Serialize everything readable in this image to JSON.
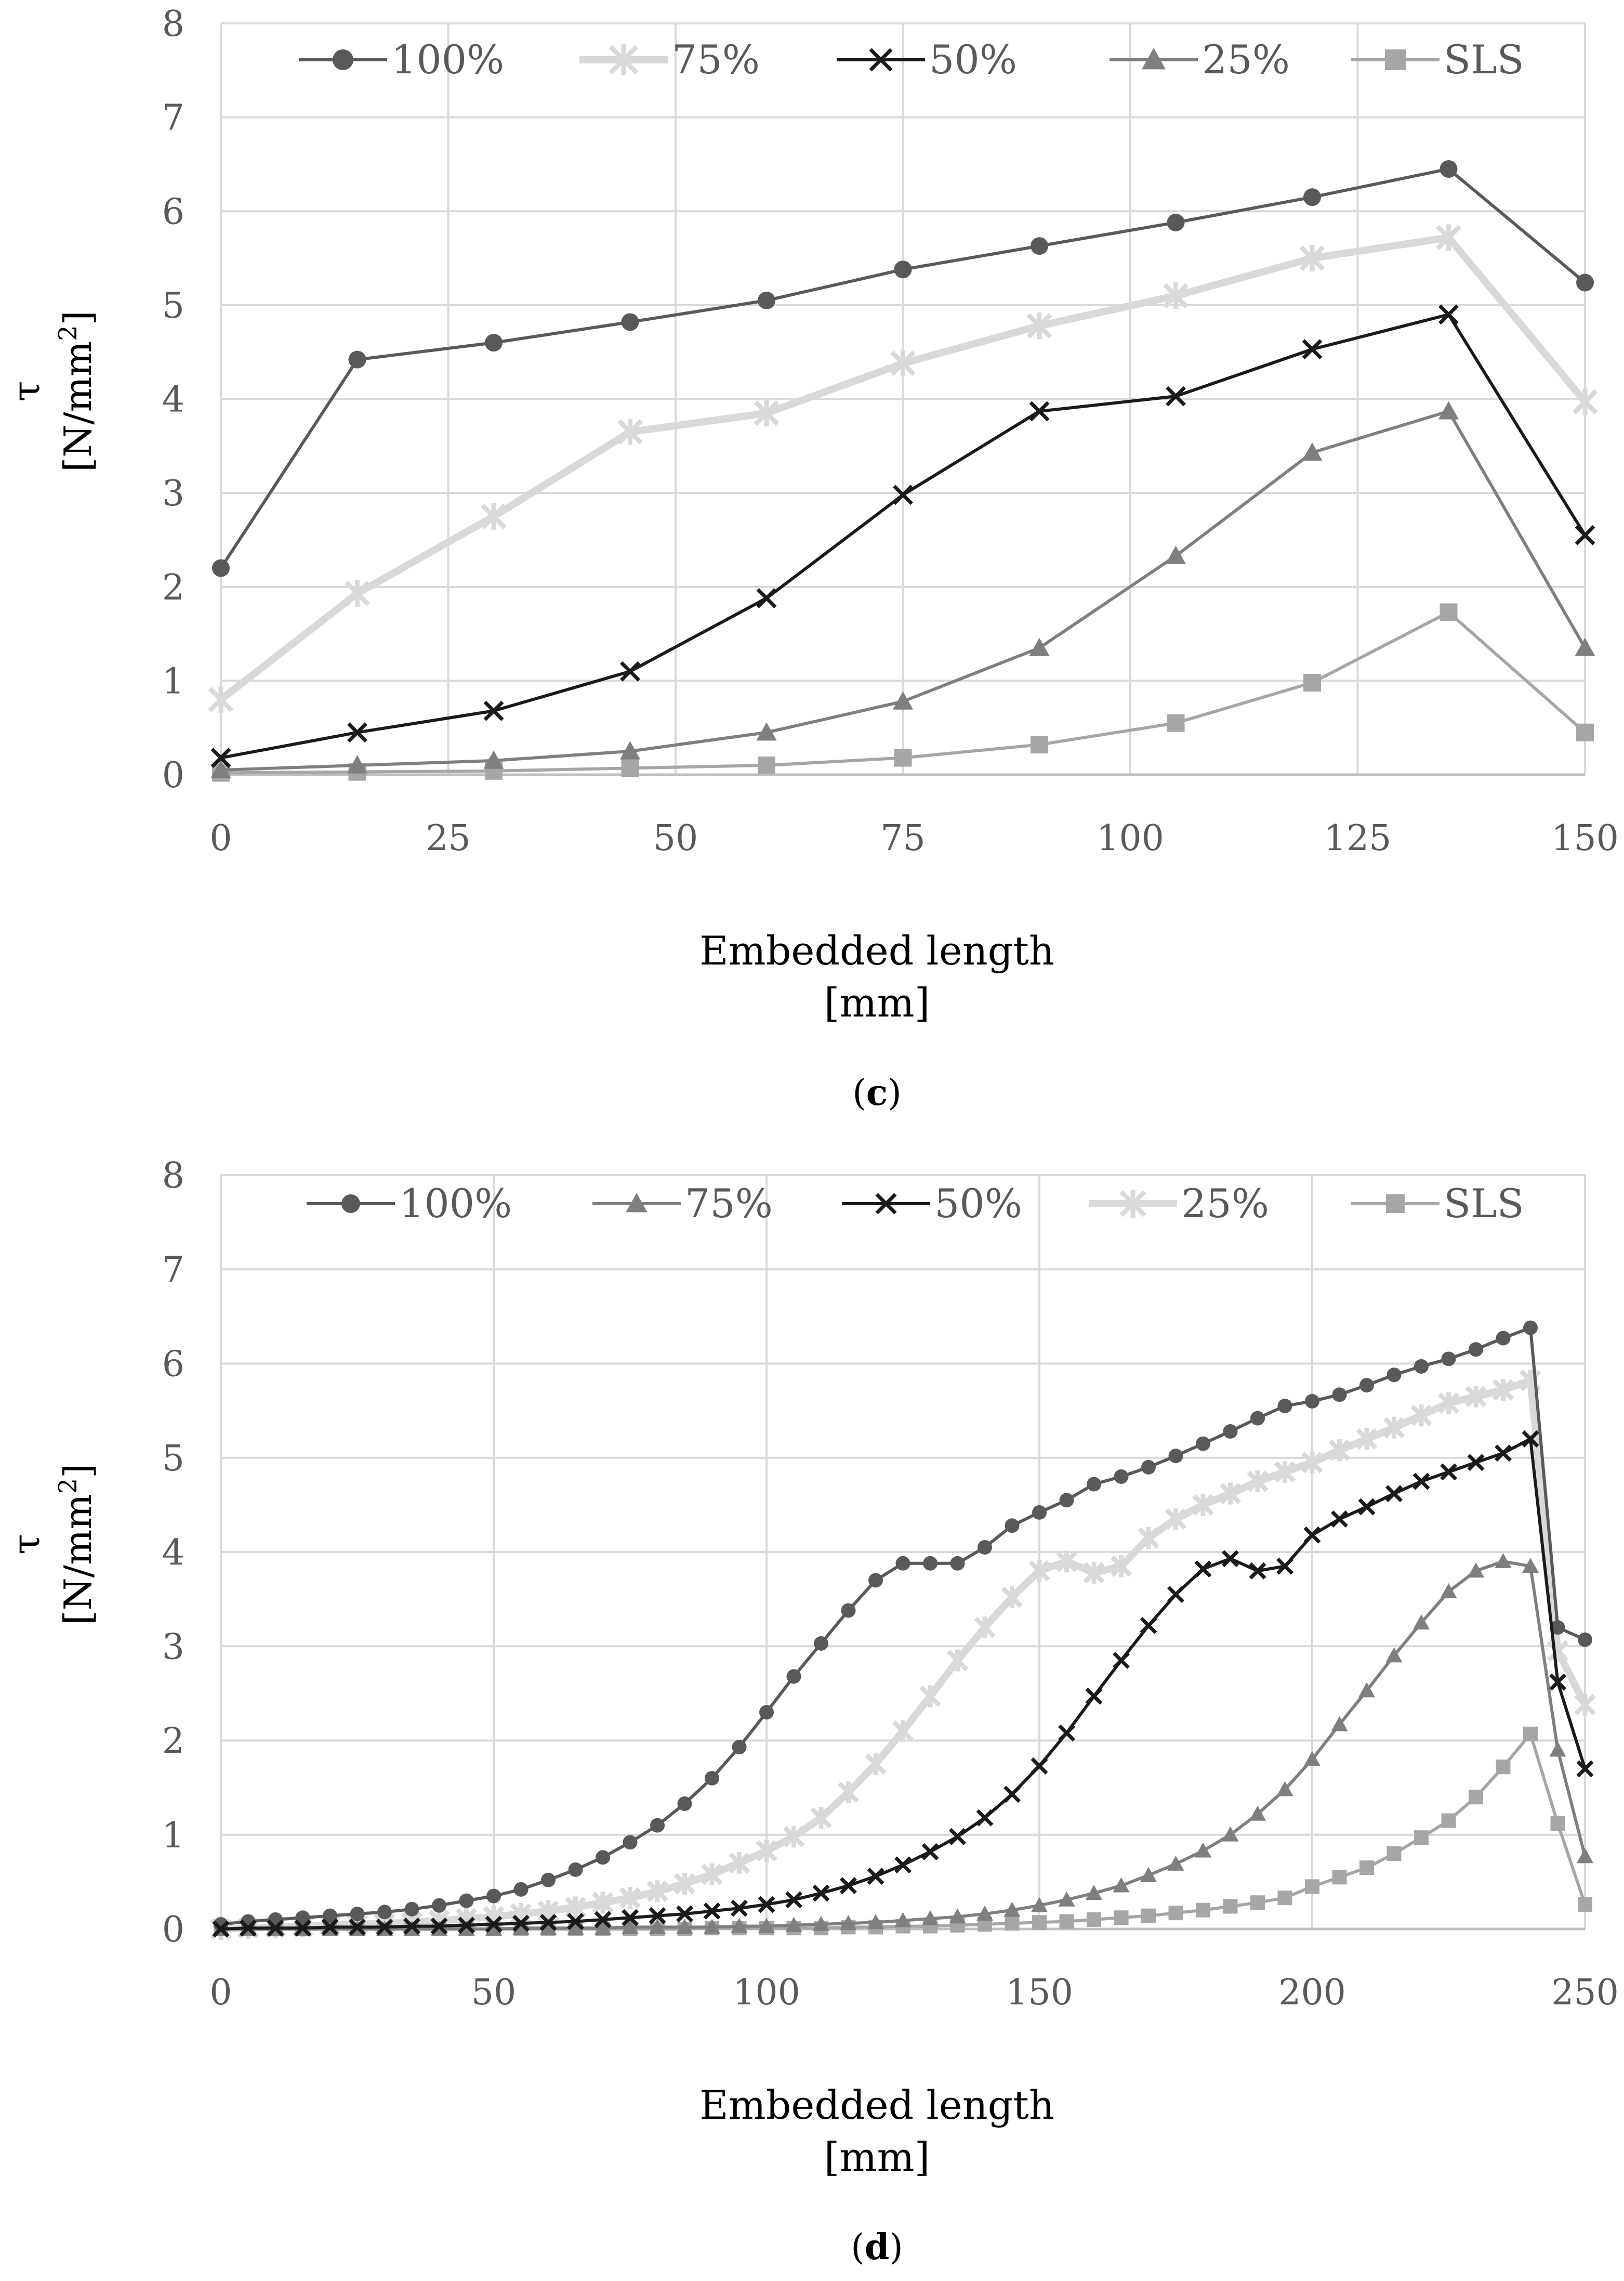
{
  "chart_data": [
    {
      "type": "line",
      "panel_label": {
        "open": "(",
        "letter": "c",
        "close": ")"
      },
      "ylabel_symbol": "τ",
      "ylabel_unit_pre": "[N/mm",
      "ylabel_unit_sup": "2",
      "ylabel_unit_post": "]",
      "xlabel": "Embedded length",
      "xlabel_unit": "[mm]",
      "xlim": [
        0,
        150
      ],
      "ylim": [
        0,
        8
      ],
      "xticks": [
        0,
        25,
        50,
        75,
        100,
        125,
        150
      ],
      "yticks": [
        0,
        1,
        2,
        3,
        4,
        5,
        6,
        7,
        8
      ],
      "grid": true,
      "legend_position": "top",
      "x": [
        0,
        15,
        30,
        45,
        60,
        75,
        90,
        105,
        120,
        135,
        150
      ],
      "series": [
        {
          "name": "100%",
          "color": "#595959",
          "marker": "circle",
          "values": [
            2.2,
            4.42,
            4.6,
            4.82,
            5.05,
            5.38,
            5.63,
            5.88,
            6.15,
            6.45,
            5.24
          ]
        },
        {
          "name": "75%",
          "color": "#d9d9d9",
          "marker": "star",
          "values": [
            0.8,
            1.93,
            2.75,
            3.65,
            3.85,
            4.38,
            4.78,
            5.1,
            5.5,
            5.72,
            3.97
          ]
        },
        {
          "name": "50%",
          "color": "#1a1a1a",
          "marker": "x",
          "values": [
            0.18,
            0.45,
            0.68,
            1.1,
            1.88,
            2.98,
            3.87,
            4.03,
            4.53,
            4.9,
            2.55
          ]
        },
        {
          "name": "25%",
          "color": "#7f7f7f",
          "marker": "triangle",
          "values": [
            0.05,
            0.1,
            0.15,
            0.25,
            0.45,
            0.78,
            1.35,
            2.33,
            3.43,
            3.87,
            1.35
          ]
        },
        {
          "name": "SLS",
          "color": "#a6a6a6",
          "marker": "square",
          "values": [
            0.02,
            0.03,
            0.04,
            0.07,
            0.1,
            0.18,
            0.32,
            0.55,
            0.98,
            1.73,
            0.45
          ]
        }
      ]
    },
    {
      "type": "line",
      "panel_label": {
        "open": "(",
        "letter": "d",
        "close": ")"
      },
      "ylabel_symbol": "τ",
      "ylabel_unit_pre": "[N/mm",
      "ylabel_unit_sup": "2",
      "ylabel_unit_post": "]",
      "xlabel": "Embedded length",
      "xlabel_unit": "[mm]",
      "xlim": [
        0,
        250
      ],
      "ylim": [
        0,
        8
      ],
      "xticks": [
        0,
        50,
        100,
        150,
        200,
        250
      ],
      "yticks": [
        0,
        1,
        2,
        3,
        4,
        5,
        6,
        7,
        8
      ],
      "grid": true,
      "legend_position": "top",
      "x": [
        0,
        5,
        10,
        15,
        20,
        25,
        30,
        35,
        40,
        45,
        50,
        55,
        60,
        65,
        70,
        75,
        80,
        85,
        90,
        95,
        100,
        105,
        110,
        115,
        120,
        125,
        130,
        135,
        140,
        145,
        150,
        155,
        160,
        165,
        170,
        175,
        180,
        185,
        190,
        195,
        200,
        205,
        210,
        215,
        220,
        225,
        230,
        235,
        240,
        245,
        250
      ],
      "series": [
        {
          "name": "100%",
          "color": "#595959",
          "marker": "circle",
          "values": [
            0.05,
            0.08,
            0.1,
            0.12,
            0.14,
            0.16,
            0.18,
            0.21,
            0.25,
            0.3,
            0.35,
            0.42,
            0.52,
            0.63,
            0.76,
            0.92,
            1.1,
            1.33,
            1.6,
            1.93,
            2.3,
            2.68,
            3.03,
            3.38,
            3.7,
            3.88,
            3.88,
            3.88,
            4.05,
            4.28,
            4.42,
            4.55,
            4.72,
            4.8,
            4.9,
            5.02,
            5.15,
            5.28,
            5.42,
            5.55,
            5.6,
            5.67,
            5.77,
            5.88,
            5.97,
            6.05,
            6.15,
            6.27,
            6.38,
            3.2,
            3.07
          ]
        },
        {
          "name": "75%",
          "color": "#7f7f7f",
          "marker": "triangle",
          "values": [
            0.0,
            0.0,
            0.0,
            0.0,
            0.0,
            0.0,
            0.0,
            0.0,
            0.0,
            0.0,
            0.0,
            0.01,
            0.01,
            0.01,
            0.01,
            0.02,
            0.02,
            0.02,
            0.02,
            0.03,
            0.03,
            0.04,
            0.05,
            0.06,
            0.07,
            0.09,
            0.11,
            0.13,
            0.16,
            0.2,
            0.25,
            0.31,
            0.38,
            0.46,
            0.57,
            0.69,
            0.83,
            1.0,
            1.22,
            1.48,
            1.8,
            2.17,
            2.53,
            2.9,
            3.25,
            3.58,
            3.8,
            3.9,
            3.85,
            1.9,
            0.77
          ]
        },
        {
          "name": "50%",
          "color": "#1a1a1a",
          "marker": "x",
          "values": [
            0.0,
            0.01,
            0.01,
            0.01,
            0.02,
            0.02,
            0.02,
            0.03,
            0.03,
            0.04,
            0.05,
            0.06,
            0.07,
            0.08,
            0.1,
            0.12,
            0.14,
            0.16,
            0.19,
            0.22,
            0.26,
            0.31,
            0.38,
            0.46,
            0.56,
            0.68,
            0.82,
            0.98,
            1.18,
            1.43,
            1.73,
            2.08,
            2.47,
            2.85,
            3.22,
            3.55,
            3.82,
            3.93,
            3.8,
            3.85,
            4.18,
            4.35,
            4.48,
            4.62,
            4.75,
            4.85,
            4.95,
            5.05,
            5.2,
            2.62,
            1.7
          ]
        },
        {
          "name": "25%",
          "color": "#d9d9d9",
          "marker": "star",
          "values": [
            0.0,
            0.01,
            0.02,
            0.03,
            0.04,
            0.05,
            0.06,
            0.07,
            0.09,
            0.11,
            0.13,
            0.16,
            0.19,
            0.23,
            0.28,
            0.33,
            0.4,
            0.48,
            0.58,
            0.7,
            0.83,
            0.98,
            1.18,
            1.45,
            1.75,
            2.1,
            2.47,
            2.85,
            3.2,
            3.52,
            3.8,
            3.9,
            3.78,
            3.85,
            4.15,
            4.35,
            4.5,
            4.62,
            4.75,
            4.85,
            4.95,
            5.08,
            5.2,
            5.32,
            5.45,
            5.58,
            5.65,
            5.72,
            5.82,
            2.95,
            2.38
          ]
        },
        {
          "name": "SLS",
          "color": "#a6a6a6",
          "marker": "square",
          "values": [
            0.0,
            0.0,
            0.0,
            0.0,
            0.0,
            0.0,
            0.0,
            0.0,
            0.0,
            0.0,
            0.0,
            0.0,
            0.0,
            0.0,
            0.0,
            0.0,
            0.0,
            0.0,
            0.01,
            0.01,
            0.01,
            0.01,
            0.01,
            0.02,
            0.02,
            0.03,
            0.03,
            0.04,
            0.05,
            0.06,
            0.07,
            0.08,
            0.1,
            0.12,
            0.14,
            0.17,
            0.2,
            0.24,
            0.28,
            0.33,
            0.45,
            0.55,
            0.65,
            0.8,
            0.97,
            1.15,
            1.4,
            1.72,
            2.07,
            1.12,
            0.26
          ]
        }
      ]
    }
  ]
}
